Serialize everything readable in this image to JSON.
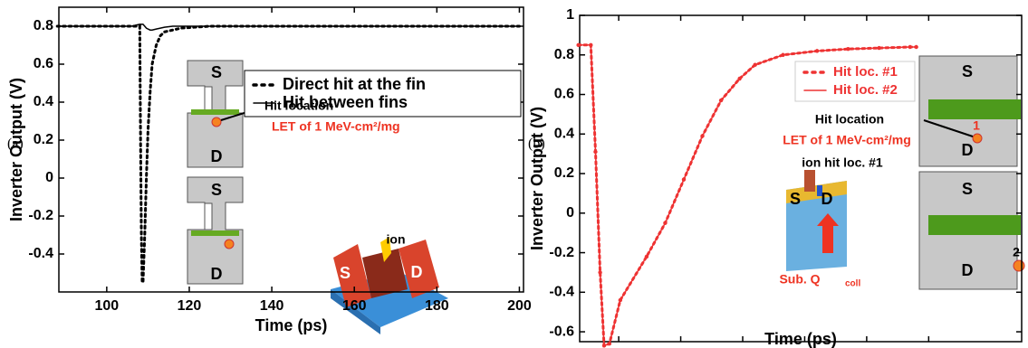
{
  "chart_data": [
    {
      "type": "line",
      "panel_label": "(a)",
      "x_label": "Time (ps)",
      "y_label": "Inverter Output (V)",
      "xlim": [
        88.4,
        201
      ],
      "xticks": [
        100,
        120,
        140,
        160,
        180,
        200
      ],
      "ylim": [
        -0.6,
        0.9
      ],
      "yticks": [
        -0.4,
        -0.2,
        0,
        0.2,
        0.4,
        0.6,
        0.8
      ],
      "x": [
        88,
        100,
        106,
        107,
        108,
        108.2,
        108.4,
        108.6,
        108.8,
        109.2,
        109.6,
        110,
        110.5,
        111,
        112,
        113,
        114,
        116,
        118,
        125,
        150,
        175,
        200
      ],
      "series": [
        {
          "name": "Direct hit at the fin",
          "color": "#000000",
          "style": "dotted",
          "marker": false,
          "values": [
            0.8,
            0.8,
            0.8,
            0.8,
            0.8,
            0.2,
            -0.3,
            -0.55,
            -0.55,
            -0.3,
            0,
            0.25,
            0.45,
            0.6,
            0.7,
            0.75,
            0.77,
            0.78,
            0.79,
            0.8,
            0.8,
            0.8,
            0.8
          ]
        },
        {
          "name": "Hit between fins",
          "color": "#000000",
          "style": "solid",
          "marker": false,
          "values": [
            0.8,
            0.8,
            0.8,
            0.805,
            0.81,
            0.81,
            0.81,
            0.81,
            0.81,
            0.8,
            0.79,
            0.785,
            0.78,
            0.78,
            0.785,
            0.79,
            0.795,
            0.8,
            0.8,
            0.8,
            0.8,
            0.8,
            0.8
          ]
        }
      ],
      "annotations": [
        {
          "text": "Hit location",
          "color": "#000000"
        },
        {
          "text": "LET of 1 MeV-cm²/mg",
          "color": "#ee3322"
        },
        {
          "text": "ion",
          "color": "#000000"
        },
        {
          "text": "S",
          "color": "#000000"
        },
        {
          "text": "D",
          "color": "#000000"
        },
        {
          "text": "S",
          "color": "#000000"
        },
        {
          "text": "D",
          "color": "#000000"
        },
        {
          "text": "S",
          "color": "#ffffff"
        },
        {
          "text": "D",
          "color": "#ffffff"
        }
      ]
    },
    {
      "type": "line",
      "panel_label": "(b)",
      "x_label": "Time (ps)",
      "y_label": "Inverter Output (V)",
      "xlim": [
        87.4,
        230
      ],
      "xticks": [
        100,
        120,
        140,
        160,
        180,
        200
      ],
      "ylim": [
        -0.65,
        1
      ],
      "yticks": [
        -0.6,
        -0.4,
        -0.2,
        0,
        0.2,
        0.4,
        0.6,
        0.8,
        1
      ],
      "x": [
        87,
        91,
        92.5,
        94,
        95.3,
        97,
        100.5,
        109,
        115,
        121,
        127,
        133,
        139,
        144,
        153,
        164,
        174,
        184,
        194,
        196
      ],
      "series": [
        {
          "name": "Hit loc. #1",
          "color": "#ee3333",
          "style": "dotted",
          "marker": true,
          "values": [
            0.85,
            0.85,
            0.31,
            -0.3,
            -0.67,
            -0.66,
            -0.44,
            -0.22,
            -0.05,
            0.17,
            0.39,
            0.57,
            0.68,
            0.75,
            0.8,
            0.82,
            0.83,
            0.835,
            0.84,
            0.84
          ]
        },
        {
          "name": "Hit loc. #2",
          "color": "#ee3333",
          "style": "solid",
          "marker": false,
          "values": [
            0.85,
            0.85,
            0.31,
            -0.3,
            -0.67,
            -0.66,
            -0.44,
            -0.22,
            -0.05,
            0.17,
            0.39,
            0.57,
            0.68,
            0.75,
            0.8,
            0.82,
            0.83,
            0.835,
            0.84,
            0.84
          ]
        }
      ],
      "annotations": [
        {
          "text": "Hit location",
          "color": "#000000"
        },
        {
          "text": "LET of 1 MeV-cm²/mg",
          "color": "#ee3322"
        },
        {
          "text": "ion hit loc. #1",
          "color": "#000000"
        },
        {
          "text": "S",
          "color": "#000000"
        },
        {
          "text": "D",
          "color": "#000000"
        },
        {
          "text": "S",
          "color": "#000000"
        },
        {
          "text": "D",
          "color": "#000000"
        },
        {
          "text": "1",
          "color": "#ee3322"
        },
        {
          "text": "2",
          "color": "#000000"
        },
        {
          "text": "S",
          "color": "#000000"
        },
        {
          "text": "D",
          "color": "#000000"
        },
        {
          "text": "Sub. Q",
          "color": "#ee3322"
        },
        {
          "text": "coll",
          "color": "#ee3322"
        }
      ]
    }
  ]
}
